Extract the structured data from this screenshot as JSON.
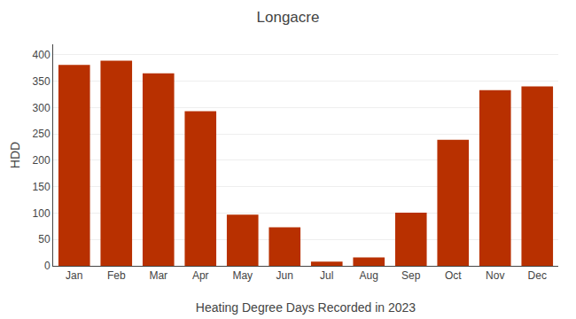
{
  "chart_data": {
    "type": "bar",
    "title": "Longacre",
    "xlabel": "Heating Degree Days Recorded in 2023",
    "ylabel": "HDD",
    "categories": [
      "Jan",
      "Feb",
      "Mar",
      "Apr",
      "May",
      "Jun",
      "Jul",
      "Aug",
      "Sep",
      "Oct",
      "Nov",
      "Dec"
    ],
    "values": [
      381,
      389,
      365,
      293,
      97,
      73,
      8,
      16,
      101,
      239,
      333,
      340
    ],
    "color": "#b83000",
    "ylim": [
      0,
      420
    ],
    "yticks": [
      0,
      50,
      100,
      150,
      200,
      250,
      300,
      350,
      400
    ],
    "grid": true
  }
}
